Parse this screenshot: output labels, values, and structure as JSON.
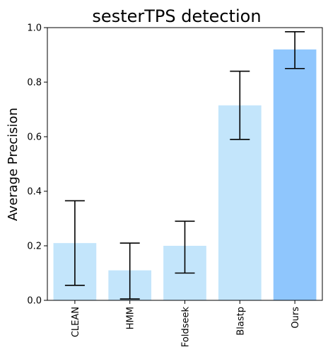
{
  "chart_data": {
    "type": "bar",
    "title": "sesterTPS detection",
    "xlabel": "",
    "ylabel": "Average Precision",
    "categories": [
      "CLEAN",
      "HMM",
      "Foldseek",
      "Blastp",
      "Ours"
    ],
    "values": [
      0.21,
      0.11,
      0.2,
      0.715,
      0.92
    ],
    "error_low": [
      0.055,
      0.005,
      0.1,
      0.59,
      0.85
    ],
    "error_high": [
      0.365,
      0.21,
      0.29,
      0.84,
      0.985
    ],
    "ylim": [
      0,
      1.0
    ],
    "yticks": [
      "0.0",
      "0.2",
      "0.4",
      "0.6",
      "0.8",
      "1.0"
    ],
    "bar_colors": [
      "#c3e5fb",
      "#c3e5fb",
      "#c3e5fb",
      "#c3e5fb",
      "#8fc6fd"
    ],
    "error_bar_color": "#000000",
    "grid": false,
    "legend": "none"
  }
}
